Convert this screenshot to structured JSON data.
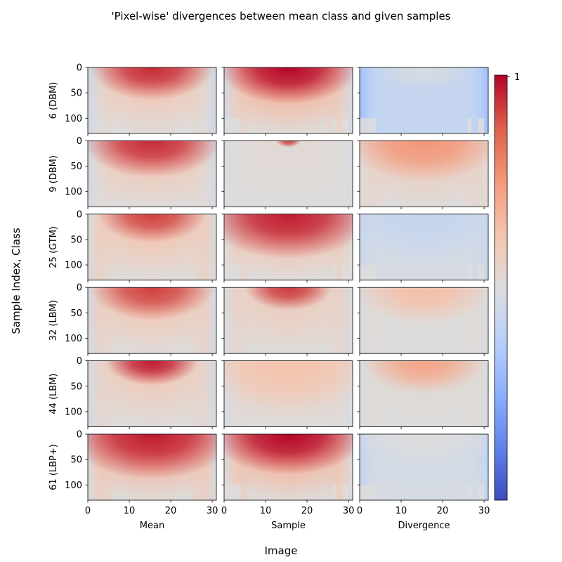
{
  "chart_data": {
    "type": "heatmap",
    "title": "'Pixel-wise' divergences between mean class and given samples",
    "xlabel": "Image",
    "ylabel": "Sample Index, Class",
    "columns": [
      "Mean",
      "Sample",
      "Divergence"
    ],
    "rows": [
      "6 (DBM)",
      "9 (DBM)",
      "25 (GTM)",
      "32 (LBM)",
      "44 (LBM)",
      "61 (LBP+)"
    ],
    "x_ticks": [
      "0",
      "10",
      "20",
      "30"
    ],
    "y_ticks": [
      "0",
      "50",
      "100"
    ],
    "xlim": [
      0,
      31
    ],
    "ylim": [
      130,
      0
    ],
    "colorbar": {
      "colormap": "coolwarm",
      "max_tick": "1"
    },
    "cells": [
      [
        {
          "base": 0.6,
          "peak": 0.95,
          "depth": 40,
          "mid": 0.66,
          "sideLo": 0.44,
          "sideHi": 0.52,
          "bg": 0.5,
          "legs": 0
        },
        {
          "base": 0.66,
          "peak": 1.0,
          "depth": 45,
          "mid": 0.72,
          "sideLo": 0.46,
          "sideHi": 0.58,
          "bg": 0.5,
          "legs": 1
        },
        {
          "base": 0.42,
          "peak": 0.48,
          "depth": 30,
          "mid": 0.42,
          "sideLo": 0.3,
          "sideHi": 0.38,
          "bg": 0.42,
          "legs": 1
        }
      ],
      [
        {
          "base": 0.6,
          "peak": 0.95,
          "depth": 45,
          "mid": 0.65,
          "sideLo": 0.46,
          "sideHi": 0.52,
          "bg": 0.5,
          "legs": 0
        },
        {
          "base": 0.52,
          "peak": 0.92,
          "depth": 8,
          "mid": 0.52,
          "sideLo": 0.48,
          "sideHi": 0.5,
          "bg": 0.5,
          "legs": 0
        },
        {
          "base": 0.58,
          "peak": 0.76,
          "depth": 50,
          "mid": 0.6,
          "sideLo": 0.52,
          "sideHi": 0.56,
          "bg": 0.5,
          "legs": 0
        }
      ],
      [
        {
          "base": 0.6,
          "peak": 0.92,
          "depth": 35,
          "mid": 0.62,
          "sideLo": 0.48,
          "sideHi": 0.6,
          "bg": 0.5,
          "legs": 0
        },
        {
          "base": 0.62,
          "peak": 0.97,
          "depth": 55,
          "mid": 0.66,
          "sideLo": 0.5,
          "sideHi": 0.58,
          "bg": 0.5,
          "legs": 1
        },
        {
          "base": 0.46,
          "peak": 0.42,
          "depth": 55,
          "mid": 0.46,
          "sideLo": 0.42,
          "sideHi": 0.46,
          "bg": 0.48,
          "legs": 1
        }
      ],
      [
        {
          "base": 0.6,
          "peak": 0.92,
          "depth": 40,
          "mid": 0.64,
          "sideLo": 0.46,
          "sideHi": 0.58,
          "bg": 0.5,
          "legs": 0
        },
        {
          "base": 0.57,
          "peak": 0.93,
          "depth": 28,
          "mid": 0.58,
          "sideLo": 0.48,
          "sideHi": 0.56,
          "bg": 0.5,
          "legs": 0
        },
        {
          "base": 0.51,
          "peak": 0.64,
          "depth": 45,
          "mid": 0.52,
          "sideLo": 0.48,
          "sideHi": 0.52,
          "bg": 0.5,
          "legs": 0
        }
      ],
      [
        {
          "base": 0.58,
          "peak": 0.97,
          "depth": 30,
          "mid": 0.64,
          "sideLo": 0.46,
          "sideHi": 0.55,
          "bg": 0.5,
          "legs": 0
        },
        {
          "base": 0.57,
          "peak": 0.62,
          "depth": 60,
          "mid": 0.58,
          "sideLo": 0.48,
          "sideHi": 0.52,
          "bg": 0.5,
          "legs": 0
        },
        {
          "base": 0.52,
          "peak": 0.72,
          "depth": 40,
          "mid": 0.55,
          "sideLo": 0.48,
          "sideHi": 0.52,
          "bg": 0.5,
          "legs": 0
        }
      ],
      [
        {
          "base": 0.66,
          "peak": 0.97,
          "depth": 55,
          "mid": 0.7,
          "sideLo": 0.48,
          "sideHi": 0.62,
          "bg": 0.5,
          "legs": 0
        },
        {
          "base": 0.67,
          "peak": 1.0,
          "depth": 50,
          "mid": 0.72,
          "sideLo": 0.48,
          "sideHi": 0.62,
          "bg": 0.5,
          "legs": 1
        },
        {
          "base": 0.46,
          "peak": 0.5,
          "depth": 45,
          "mid": 0.48,
          "sideLo": 0.4,
          "sideHi": 0.46,
          "bg": 0.48,
          "legs": 1
        }
      ]
    ]
  }
}
